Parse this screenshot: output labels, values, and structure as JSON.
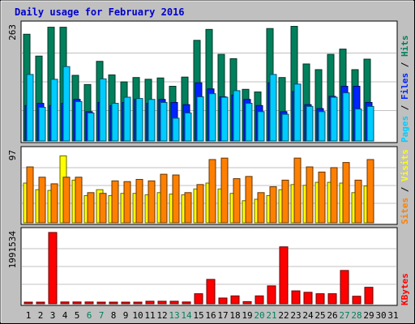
{
  "title": "Daily usage for February 2016",
  "colors": {
    "background": "#c0c0c0",
    "panel": "#ffffff",
    "title": "#0000cc",
    "hits": "#00805c",
    "files": "#0024ff",
    "pages": "#00ccff",
    "visits": "#ffff00",
    "sites": "#ff8000",
    "kbytes": "#ff0000",
    "weekday_label": "#000000",
    "weekend_label": "#00805c"
  },
  "legends": {
    "top": [
      "Hits",
      "Files",
      "Pages"
    ],
    "middle": [
      "Visits",
      "Sites"
    ],
    "bottom": [
      "KBytes"
    ]
  },
  "chart_data": [
    {
      "type": "bar",
      "name": "hits-files-pages",
      "ymax_label": "263",
      "ylim": [
        0,
        263
      ],
      "categories": [
        "1",
        "2",
        "3",
        "4",
        "5",
        "6",
        "7",
        "8",
        "9",
        "10",
        "11",
        "12",
        "13",
        "14",
        "15",
        "16",
        "17",
        "18",
        "19",
        "20",
        "21",
        "22",
        "23",
        "24",
        "25",
        "26",
        "27",
        "28",
        "29",
        "30",
        "31"
      ],
      "series": [
        {
          "name": "Hits",
          "values": [
            244,
            194,
            260,
            260,
            150,
            129,
            182,
            151,
            135,
            145,
            141,
            144,
            125,
            146,
            230,
            255,
            198,
            188,
            118,
            112,
            257,
            145,
            262,
            176,
            163,
            198,
            210,
            163,
            187,
            0,
            0
          ]
        },
        {
          "name": "Files",
          "values": [
            81,
            86,
            81,
            86,
            95,
            67,
            88,
            81,
            88,
            95,
            86,
            95,
            88,
            83,
            133,
            119,
            101,
            105,
            95,
            81,
            133,
            67,
            113,
            83,
            74,
            102,
            125,
            125,
            88,
            0,
            0
          ]
        },
        {
          "name": "Pages",
          "values": [
            152,
            77,
            141,
            170,
            90,
            64,
            142,
            86,
            100,
            97,
            95,
            88,
            52,
            64,
            101,
            108,
            100,
            115,
            86,
            67,
            152,
            61,
            130,
            79,
            67,
            100,
            110,
            73,
            79,
            0,
            0
          ]
        }
      ]
    },
    {
      "type": "bar",
      "name": "visits-sites",
      "ymax_label": "97",
      "ylim": [
        0,
        97
      ],
      "categories": [
        "1",
        "2",
        "3",
        "4",
        "5",
        "6",
        "7",
        "8",
        "9",
        "10",
        "11",
        "12",
        "13",
        "14",
        "15",
        "16",
        "17",
        "18",
        "19",
        "20",
        "21",
        "22",
        "23",
        "24",
        "25",
        "26",
        "27",
        "28",
        "29",
        "30",
        "31"
      ],
      "series": [
        {
          "name": "Visits",
          "values": [
            54,
            45,
            44,
            91,
            58,
            37,
            45,
            37,
            40,
            40,
            38,
            41,
            39,
            38,
            46,
            54,
            46,
            40,
            30,
            32,
            37,
            45,
            52,
            51,
            55,
            55,
            54,
            41,
            50,
            0,
            0
          ]
        },
        {
          "name": "Sites",
          "values": [
            76,
            62,
            53,
            62,
            62,
            41,
            40,
            57,
            56,
            59,
            57,
            66,
            65,
            41,
            52,
            86,
            88,
            60,
            63,
            41,
            49,
            58,
            88,
            76,
            69,
            75,
            82,
            58,
            86,
            0,
            0
          ]
        }
      ]
    },
    {
      "type": "bar",
      "name": "kbytes",
      "ymax_label": "1991534",
      "ylim": [
        0,
        1991534
      ],
      "categories": [
        "1",
        "2",
        "3",
        "4",
        "5",
        "6",
        "7",
        "8",
        "9",
        "10",
        "11",
        "12",
        "13",
        "14",
        "15",
        "16",
        "17",
        "18",
        "19",
        "20",
        "21",
        "22",
        "23",
        "24",
        "25",
        "26",
        "27",
        "28",
        "29",
        "30",
        "31"
      ],
      "series": [
        {
          "name": "KBytes",
          "values": [
            30000,
            30000,
            1991534,
            50000,
            50000,
            50000,
            30000,
            30000,
            30000,
            30000,
            70000,
            70000,
            70000,
            50000,
            280000,
            680000,
            160000,
            220000,
            60000,
            220000,
            500000,
            1590000,
            360000,
            320000,
            280000,
            280000,
            930000,
            210000,
            460000,
            0,
            0
          ]
        }
      ]
    }
  ],
  "day_labels": [
    "1",
    "2",
    "3",
    "4",
    "5",
    "6",
    "7",
    "8",
    "9",
    "10",
    "11",
    "12",
    "13",
    "14",
    "15",
    "16",
    "17",
    "18",
    "19",
    "20",
    "21",
    "22",
    "23",
    "24",
    "25",
    "26",
    "27",
    "28",
    "29",
    "30",
    "31"
  ],
  "weekend_days": [
    6,
    7,
    13,
    14,
    20,
    21,
    27,
    28
  ]
}
